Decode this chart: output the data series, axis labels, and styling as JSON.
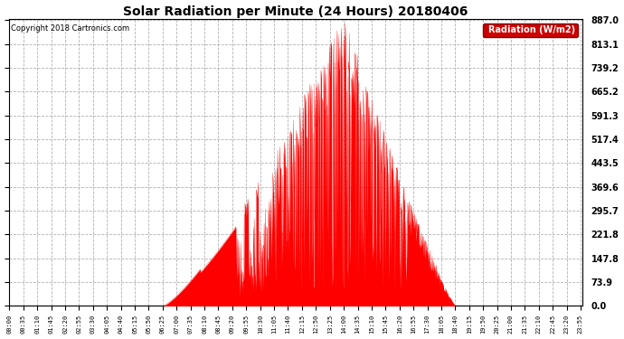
{
  "title": "Solar Radiation per Minute (24 Hours) 20180406",
  "copyright": "Copyright 2018 Cartronics.com",
  "legend_label": "Radiation (W/m2)",
  "yticks": [
    0.0,
    73.9,
    147.8,
    221.8,
    295.7,
    369.6,
    443.5,
    517.4,
    591.3,
    665.2,
    739.2,
    813.1,
    887.0
  ],
  "ymax": 887.0,
  "ymin": 0.0,
  "fill_color": "#ff0000",
  "line_color": "#cc0000",
  "background_color": "#ffffff",
  "plot_bg_color": "#ffffff",
  "grid_color": "#aaaaaa",
  "title_color": "#000000",
  "copyright_color": "#000000",
  "legend_bg": "#cc0000",
  "legend_text_color": "#ffffff",
  "sunrise_minute": 385,
  "sunset_minute": 1120,
  "peak_minute": 840,
  "peak_value": 887.0
}
